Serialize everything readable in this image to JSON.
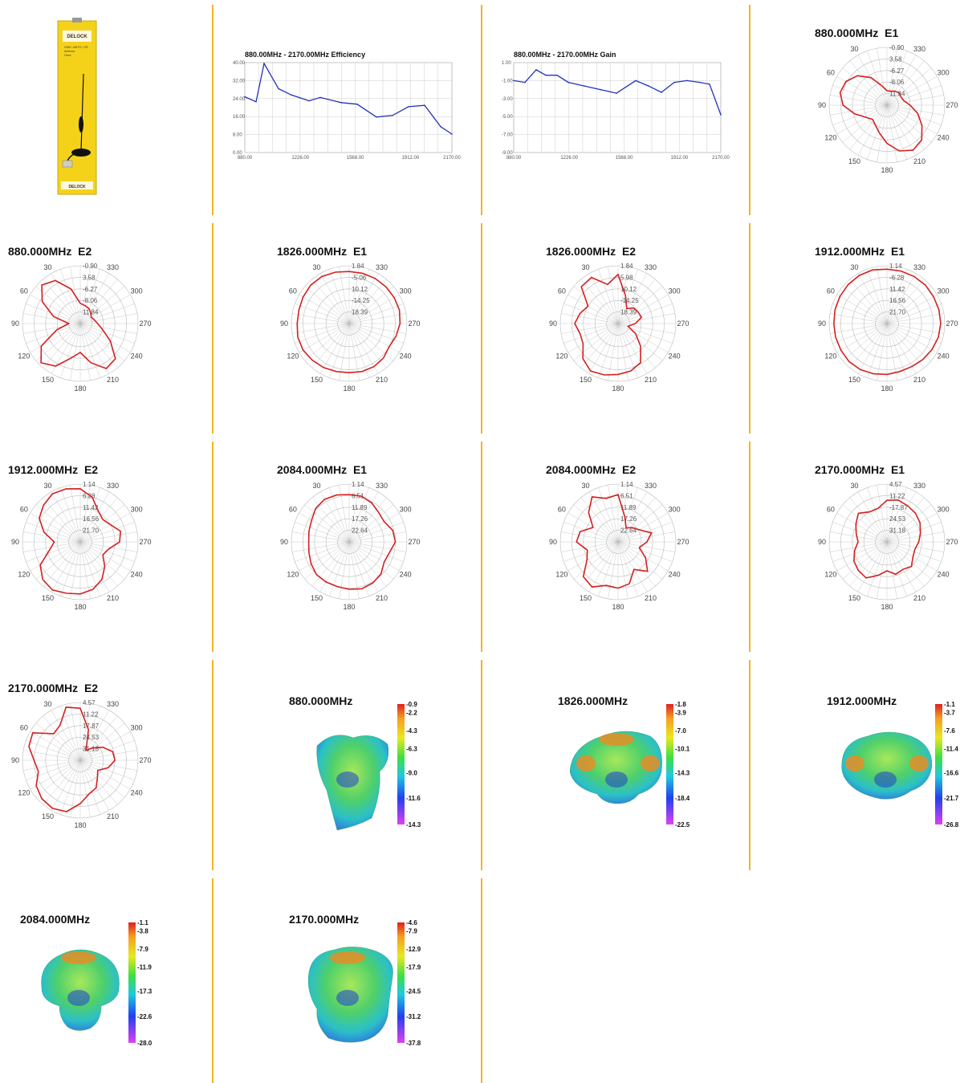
{
  "product_image": {
    "brand": "DELOCK",
    "box_text": [
      "GSM / UMTS / LTE",
      "Antenna",
      "Omni"
    ],
    "footer": "DELOCK"
  },
  "colors": {
    "separator": "#f2b522",
    "line_series": "#2233bb",
    "polar_series": "#d42020",
    "grid": "#bbbbbb",
    "box": "#f5d21a"
  },
  "chart_data": [
    {
      "type": "line",
      "title": "880.00MHz - 2170.00MHz Efficiency",
      "ylim": [
        0,
        40
      ],
      "y_ticks": [
        "40.00",
        "32.00",
        "24.00",
        "16.00",
        "8.00",
        "0.00"
      ],
      "x_ticks": [
        "880.00",
        "1226.00",
        "1568.00",
        "1912.00",
        "2170.00"
      ],
      "x_tick_values": [
        880,
        1226,
        1568,
        1912,
        2170
      ],
      "x": [
        880,
        950,
        1000,
        1090,
        1170,
        1280,
        1350,
        1480,
        1580,
        1700,
        1800,
        1900,
        2000,
        2100,
        2170
      ],
      "values": [
        24.8,
        22.6,
        39.6,
        28.4,
        25.6,
        23.0,
        24.5,
        22.2,
        21.5,
        15.8,
        16.5,
        20.4,
        21.0,
        11.5,
        8.2
      ]
    },
    {
      "type": "line",
      "title": "880.00MHz - 2170.00MHz Gain",
      "ylim": [
        -9,
        1
      ],
      "y_ticks": [
        "1.00",
        "-1.00",
        "-3.00",
        "-5.00",
        "-7.00",
        "-9.00"
      ],
      "x_ticks": [
        "880.00",
        "1226.00",
        "1568.00",
        "1912.00",
        "2170.00"
      ],
      "x_tick_values": [
        880,
        1226,
        1568,
        1912,
        2170
      ],
      "x": [
        880,
        950,
        1020,
        1080,
        1150,
        1220,
        1320,
        1420,
        1520,
        1640,
        1720,
        1800,
        1880,
        1960,
        2040,
        2100,
        2170
      ],
      "values": [
        -1.0,
        -1.2,
        0.2,
        -0.4,
        -0.4,
        -1.2,
        -1.6,
        -2.0,
        -2.4,
        -1.0,
        -1.6,
        -2.3,
        -1.2,
        -1.0,
        -1.2,
        -1.4,
        -4.8
      ]
    },
    {
      "type": "polar",
      "title": "880.000MHz  E1",
      "rings": [
        "-0.90",
        "3.58",
        "-6.27",
        "-8.06",
        "11.84"
      ],
      "angles": [
        "0",
        "30",
        "60",
        "90",
        "120",
        "150",
        "180",
        "210",
        "240",
        "270",
        "300",
        "330"
      ],
      "values": [
        0.25,
        0.35,
        0.55,
        0.72,
        0.82,
        0.84,
        0.76,
        0.58,
        0.42,
        0.35,
        0.4,
        0.5,
        0.66,
        0.82,
        0.9,
        0.85,
        0.7,
        0.55,
        0.4,
        0.3,
        0.28,
        0.3,
        0.28,
        0.25
      ]
    },
    {
      "type": "polar",
      "title": "880.000MHz  E2",
      "rings": [
        "-0.90",
        "3.58",
        "-6.27",
        "-8.06",
        "11.84"
      ],
      "angles": [
        "0",
        "30",
        "60",
        "90",
        "120",
        "150",
        "180",
        "210",
        "240",
        "270",
        "300",
        "330"
      ],
      "values": [
        0.35,
        0.62,
        0.86,
        0.94,
        0.76,
        0.48,
        0.2,
        0.42,
        0.78,
        0.96,
        0.85,
        0.62,
        0.5,
        0.7,
        0.9,
        0.86,
        0.6,
        0.4,
        0.3,
        0.25,
        0.22,
        0.26,
        0.3,
        0.32
      ]
    },
    {
      "type": "polar",
      "title": "1826.000MHz  E1",
      "rings": [
        "1.84",
        "-5.06",
        "10.12",
        "-14.25",
        "18.39"
      ],
      "angles": [
        "0",
        "30",
        "60",
        "90",
        "120",
        "150",
        "180",
        "210",
        "240",
        "270",
        "300",
        "330"
      ],
      "values": [
        0.9,
        0.92,
        0.94,
        0.94,
        0.92,
        0.9,
        0.9,
        0.92,
        0.92,
        0.9,
        0.88,
        0.86,
        0.85,
        0.86,
        0.86,
        0.84,
        0.8,
        0.84,
        0.88,
        0.9,
        0.9,
        0.9,
        0.9,
        0.9
      ]
    },
    {
      "type": "polar",
      "title": "1826.000MHz  E2",
      "rings": [
        "1.84",
        "5.98",
        "10.12",
        "-14.25",
        "18.39"
      ],
      "angles": [
        "0",
        "30",
        "60",
        "90",
        "120",
        "150",
        "180",
        "210",
        "240",
        "270",
        "300",
        "330"
      ],
      "values": [
        0.85,
        0.7,
        0.92,
        0.9,
        0.6,
        0.68,
        0.75,
        0.68,
        0.7,
        0.86,
        0.95,
        0.92,
        0.88,
        0.85,
        0.78,
        0.55,
        0.35,
        0.18,
        0.3,
        0.42,
        0.4,
        0.38,
        0.3,
        0.5
      ]
    },
    {
      "type": "polar",
      "title": "1912.000MHz  E1",
      "rings": [
        "1.14",
        "-6.28",
        "11.42",
        "16.56",
        "21.70"
      ],
      "angles": [
        "0",
        "30",
        "60",
        "90",
        "120",
        "150",
        "180",
        "210",
        "240",
        "270",
        "300",
        "330"
      ],
      "values": [
        0.94,
        0.96,
        0.96,
        0.95,
        0.94,
        0.93,
        0.92,
        0.92,
        0.92,
        0.93,
        0.92,
        0.9,
        0.88,
        0.86,
        0.86,
        0.88,
        0.9,
        0.92,
        0.93,
        0.93,
        0.93,
        0.94,
        0.94,
        0.94
      ]
    },
    {
      "type": "polar",
      "title": "1912.000MHz  E2",
      "rings": [
        "1.14",
        "6.28",
        "11.42",
        "16.56",
        "21.70"
      ],
      "angles": [
        "0",
        "30",
        "60",
        "90",
        "120",
        "150",
        "180",
        "210",
        "240",
        "270",
        "300",
        "330"
      ],
      "values": [
        0.92,
        0.95,
        0.96,
        0.9,
        0.82,
        0.65,
        0.45,
        0.55,
        0.8,
        0.92,
        0.96,
        0.92,
        0.9,
        0.85,
        0.75,
        0.6,
        0.45,
        0.5,
        0.68,
        0.72,
        0.6,
        0.55,
        0.62,
        0.8
      ]
    },
    {
      "type": "polar",
      "title": "2084.000MHz  E1",
      "rings": [
        "1.14",
        "6.51",
        "11.89",
        "17.26",
        "22.64"
      ],
      "angles": [
        "0",
        "30",
        "60",
        "90",
        "120",
        "150",
        "180",
        "210",
        "240",
        "270",
        "300",
        "330"
      ],
      "values": [
        0.82,
        0.84,
        0.85,
        0.82,
        0.75,
        0.72,
        0.7,
        0.72,
        0.76,
        0.8,
        0.8,
        0.8,
        0.82,
        0.84,
        0.82,
        0.78,
        0.7,
        0.72,
        0.8,
        0.78,
        0.7,
        0.72,
        0.78,
        0.82
      ]
    },
    {
      "type": "polar",
      "title": "2084.000MHz  E2",
      "rings": [
        "1.14",
        "6.51",
        "11.89",
        "17.26",
        "22.64"
      ],
      "angles": [
        "0",
        "30",
        "60",
        "90",
        "120",
        "150",
        "180",
        "210",
        "240",
        "270",
        "300",
        "330"
      ],
      "values": [
        0.82,
        0.78,
        0.9,
        0.72,
        0.5,
        0.68,
        0.72,
        0.55,
        0.62,
        0.85,
        0.9,
        0.78,
        0.8,
        0.75,
        0.55,
        0.72,
        0.55,
        0.38,
        0.5,
        0.6,
        0.42,
        0.35,
        0.28,
        0.45
      ]
    },
    {
      "type": "polar",
      "title": "2170.000MHz  E1",
      "rings": [
        "4.57",
        "11.22",
        "-17.87",
        "24.53",
        "31.18"
      ],
      "angles": [
        "0",
        "30",
        "60",
        "90",
        "120",
        "150",
        "180",
        "210",
        "240",
        "270",
        "300",
        "330"
      ],
      "values": [
        0.72,
        0.6,
        0.6,
        0.7,
        0.62,
        0.55,
        0.5,
        0.58,
        0.66,
        0.7,
        0.72,
        0.6,
        0.5,
        0.58,
        0.55,
        0.6,
        0.52,
        0.5,
        0.55,
        0.6,
        0.66,
        0.7,
        0.72,
        0.75
      ]
    },
    {
      "type": "polar",
      "title": "2170.000MHz  E2",
      "rings": [
        "4.57",
        "11.22",
        "17.87",
        "24.53",
        "31.18"
      ],
      "angles": [
        "0",
        "30",
        "60",
        "90",
        "120",
        "150",
        "180",
        "210",
        "240",
        "270",
        "300",
        "330"
      ],
      "values": [
        0.9,
        0.95,
        0.7,
        0.65,
        0.95,
        0.92,
        0.8,
        0.75,
        0.88,
        0.94,
        0.96,
        0.92,
        0.75,
        0.6,
        0.55,
        0.42,
        0.35,
        0.5,
        0.6,
        0.58,
        0.45,
        0.3,
        0.2,
        0.55
      ]
    },
    {
      "type": "heatmap",
      "title": "880.000MHz",
      "colorbar": [
        "-0.9",
        "-2.2",
        "-4.3",
        "-6.3",
        "-9.0",
        "-11.6",
        "-14.3"
      ],
      "shape": "tall",
      "hot": []
    },
    {
      "type": "heatmap",
      "title": "1826.000MHz",
      "colorbar": [
        "-1.8",
        "-3.9",
        "-7.0",
        "-10.1",
        "-14.3",
        "-18.4",
        "-22.5"
      ],
      "shape": "mushroom",
      "hot": [
        "left",
        "right",
        "top"
      ]
    },
    {
      "type": "heatmap",
      "title": "1912.000MHz",
      "colorbar": [
        "-1.1",
        "-3.7",
        "-7.6",
        "-11.4",
        "-16.6",
        "-21.7",
        "-26.8"
      ],
      "shape": "blob",
      "hot": [
        "left",
        "right"
      ]
    },
    {
      "type": "heatmap",
      "title": "2084.000MHz",
      "colorbar": [
        "-1.1",
        "-3.8",
        "-7.9",
        "-11.9",
        "-17.3",
        "-22.6",
        "-28.0"
      ],
      "shape": "dome",
      "hot": [
        "top"
      ]
    },
    {
      "type": "heatmap",
      "title": "2170.000MHz",
      "colorbar": [
        "-4.6",
        "-7.9",
        "-12.9",
        "-17.9",
        "-24.5",
        "-31.2",
        "-37.8"
      ],
      "shape": "face",
      "hot": [
        "top"
      ]
    }
  ]
}
